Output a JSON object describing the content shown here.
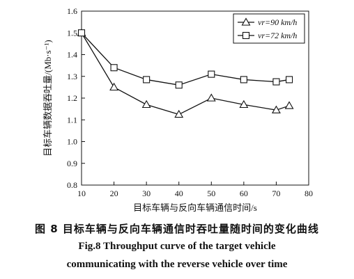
{
  "chart_data": {
    "type": "line",
    "xlabel": "目标车辆与反向车辆通信时间/s",
    "ylabel": "目标车辆数据吞吐量/(Mb·s⁻¹)",
    "xlim": [
      10,
      80
    ],
    "ylim": [
      0.8,
      1.6
    ],
    "xticks": [
      "10",
      "20",
      "30",
      "40",
      "50",
      "60",
      "70",
      "80"
    ],
    "yticks": [
      "0.8",
      "0.9",
      "1.0",
      "1.1",
      "1.2",
      "1.3",
      "1.4",
      "1.5",
      "1.6"
    ],
    "x": [
      10,
      20,
      30,
      40,
      50,
      60,
      70,
      74
    ],
    "series": [
      {
        "name": "vr=90 km/h",
        "marker": "triangle",
        "values": [
          1.5,
          1.25,
          1.17,
          1.125,
          1.2,
          1.17,
          1.145,
          1.165
        ]
      },
      {
        "name": "vr=72 km/h",
        "marker": "square",
        "values": [
          1.5,
          1.34,
          1.285,
          1.26,
          1.31,
          1.285,
          1.275,
          1.285
        ]
      }
    ],
    "legend_position": "top-right",
    "grid": false,
    "caption_cn": "图 8   目标车辆与反向车辆通信时吞吐量随时间的变化曲线",
    "caption_en_line1": "Fig.8    Throughput curve of the target vehicle",
    "caption_en_line2": "communicating with the reverse vehicle over time"
  }
}
